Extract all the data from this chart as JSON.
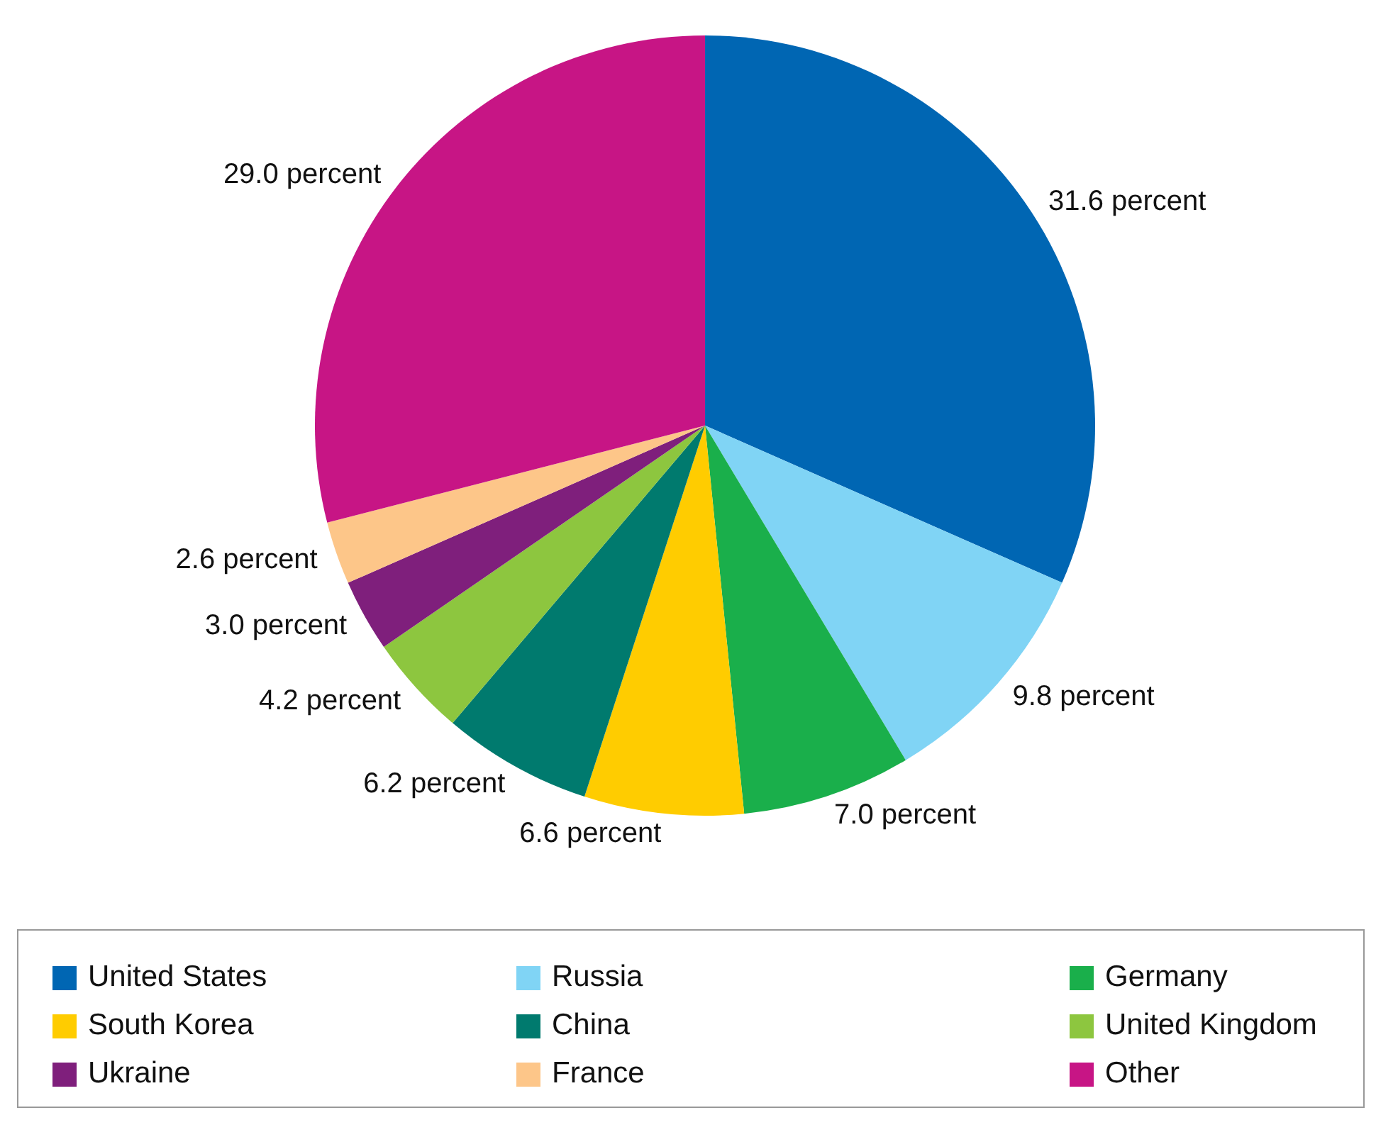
{
  "chart_data": {
    "type": "pie",
    "categories": [
      "United States",
      "Russia",
      "Germany",
      "South Korea",
      "China",
      "United Kingdom",
      "Ukraine",
      "France",
      "Other"
    ],
    "values": [
      31.6,
      9.8,
      7.0,
      6.6,
      6.2,
      4.2,
      3.0,
      2.6,
      29.0
    ],
    "colors": [
      "#0066b3",
      "#80d4f5",
      "#1aaf4b",
      "#ffcc00",
      "#007a6e",
      "#8dc63f",
      "#7f1f7c",
      "#fdc689",
      "#c71585"
    ],
    "value_labels": [
      "31.6 percent",
      "9.8 percent",
      "7.0 percent",
      "6.6 percent",
      "6.2 percent",
      "4.2 percent",
      "3.0 percent",
      "2.6 percent",
      "29.0 percent"
    ],
    "legend": "bottom"
  }
}
